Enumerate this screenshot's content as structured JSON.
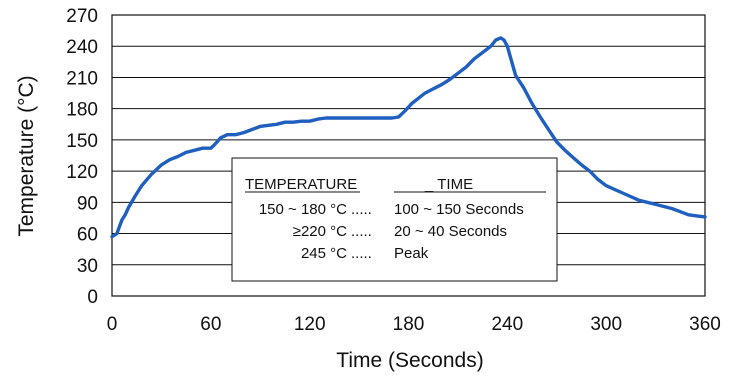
{
  "chart_data": {
    "type": "line",
    "xlabel": "Time (Seconds)",
    "ylabel": "Temperature (°C)",
    "xlim": [
      0,
      360
    ],
    "ylim": [
      0,
      270
    ],
    "x_ticks": [
      "0",
      "60",
      "120",
      "180",
      "240",
      "300",
      "360"
    ],
    "y_ticks": [
      "0",
      "30",
      "60",
      "90",
      "120",
      "150",
      "180",
      "210",
      "240",
      "270"
    ],
    "grid": "horizontal",
    "line_color": "#1f5fbf",
    "series": [
      {
        "x": [
          0,
          3,
          6,
          8,
          10,
          14,
          18,
          24,
          30,
          35,
          40,
          45,
          50,
          55,
          60,
          62,
          66,
          70,
          75,
          80,
          85,
          90,
          95,
          100,
          105,
          110,
          115,
          120,
          125,
          130,
          140,
          150,
          160,
          170,
          174,
          178,
          182,
          186,
          190,
          195,
          200,
          205,
          210,
          215,
          220,
          225,
          230,
          233,
          236,
          238,
          240,
          245,
          250,
          255,
          260,
          265,
          270,
          275,
          280,
          285,
          290,
          295,
          300,
          310,
          320,
          330,
          340,
          345,
          350,
          355,
          360
        ],
        "values": [
          57,
          60,
          73,
          78,
          85,
          96,
          106,
          117,
          126,
          131,
          134,
          138,
          140,
          142,
          142,
          145,
          152,
          155,
          155,
          157,
          160,
          163,
          164,
          165,
          167,
          167,
          168,
          168,
          170,
          171,
          171,
          171,
          171,
          171,
          172,
          178,
          185,
          190,
          195,
          199,
          203,
          208,
          214,
          220,
          228,
          234,
          240,
          246,
          248,
          246,
          240,
          212,
          200,
          185,
          172,
          160,
          148,
          140,
          133,
          126,
          120,
          112,
          106,
          99,
          92,
          88,
          84,
          81,
          78,
          77,
          76
        ]
      }
    ],
    "annotation": {
      "header_left": "TEMPERATURE",
      "header_right": "_  TIME",
      "rows": [
        {
          "temp": "150 ~ 180 °C",
          "dots": ".....",
          "time": "100 ~ 150 Seconds"
        },
        {
          "temp": "≥220 °C",
          "dots": ".....",
          "time": "20 ~ 40 Seconds"
        },
        {
          "temp": "245 °C",
          "dots": ".....",
          "time": "Peak"
        }
      ]
    }
  }
}
